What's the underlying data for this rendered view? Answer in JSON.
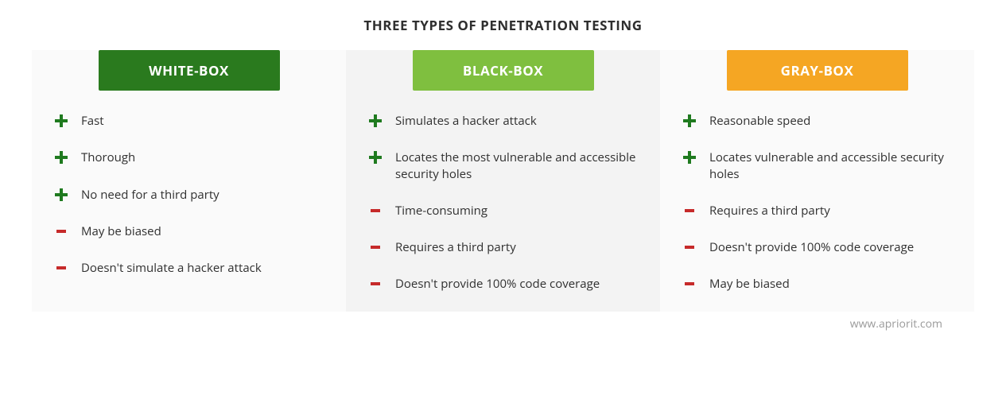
{
  "title": "THREE TYPES OF PENETRATION TESTING",
  "title_fontsize": 17,
  "title_color": "#2f2f2f",
  "background_color": "#ffffff",
  "column_bg_colors": [
    "#fafafa",
    "#f3f3f3",
    "#fafafa"
  ],
  "plus_color": "#1f7a1f",
  "minus_color": "#c62a2a",
  "item_text_color": "#2f2f2f",
  "header_text_color": "#ffffff",
  "footer_text": "www.apriorit.com",
  "footer_color": "#9a9a9a",
  "columns": [
    {
      "header": "WHITE-BOX",
      "header_bg": "#2a7a1e",
      "items": [
        {
          "type": "plus",
          "text": "Fast"
        },
        {
          "type": "plus",
          "text": "Thorough"
        },
        {
          "type": "plus",
          "text": "No need for a third party"
        },
        {
          "type": "minus",
          "text": "May be biased"
        },
        {
          "type": "minus",
          "text": "Doesn't simulate a hacker attack"
        }
      ]
    },
    {
      "header": "BLACK-BOX",
      "header_bg": "#7fbf3f",
      "items": [
        {
          "type": "plus",
          "text": "Simulates a hacker attack"
        },
        {
          "type": "plus",
          "text": "Locates the most vulnerable and accessible security holes"
        },
        {
          "type": "minus",
          "text": "Time-consuming"
        },
        {
          "type": "minus",
          "text": "Requires a third party"
        },
        {
          "type": "minus",
          "text": "Doesn't provide 100% code coverage"
        }
      ]
    },
    {
      "header": "GRAY-BOX",
      "header_bg": "#f5a623",
      "items": [
        {
          "type": "plus",
          "text": "Reasonable speed"
        },
        {
          "type": "plus",
          "text": "Locates vulnerable and accessible security holes"
        },
        {
          "type": "minus",
          "text": "Requires a third party"
        },
        {
          "type": "minus",
          "text": "Doesn't provide 100% code coverage"
        },
        {
          "type": "minus",
          "text": "May be biased"
        }
      ]
    }
  ]
}
